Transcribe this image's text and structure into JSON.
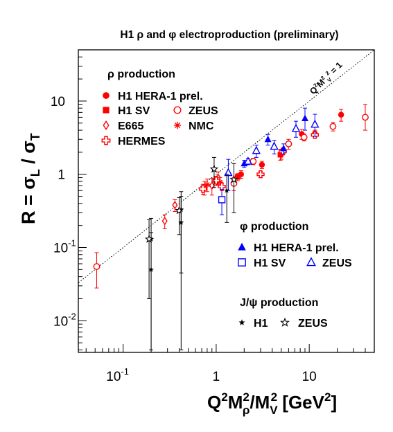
{
  "chart_data": {
    "type": "scatter",
    "title": "H1 ρ and φ electroproduction (preliminary)",
    "ylabel": "R = σL / σT",
    "xlabel": "Q²Mρ²/MV² [GeV²]",
    "x_scale": "log",
    "y_scale": "log",
    "xlim": [
      0.033,
      50
    ],
    "ylim": [
      0.0037,
      50
    ],
    "x_ticks": [
      {
        "value": 0.1,
        "base": "10",
        "exp": "-1"
      },
      {
        "value": 1,
        "base": "1",
        "exp": ""
      },
      {
        "value": 10,
        "base": "10",
        "exp": ""
      }
    ],
    "y_ticks": [
      {
        "value": 0.01,
        "base": "10",
        "exp": "-2"
      },
      {
        "value": 0.1,
        "base": "10",
        "exp": "-1"
      },
      {
        "value": 1,
        "base": "1",
        "exp": ""
      },
      {
        "value": 10,
        "base": "10",
        "exp": ""
      }
    ],
    "reference_line": {
      "label": "Q²Mρ²/MV² = 1",
      "relation": "R = x"
    },
    "legend": {
      "rho_heading": "ρ production",
      "phi_heading": "φ production",
      "jpsi_heading": "J/ψ production"
    },
    "series": [
      {
        "name": "H1 HERA-1 prel.",
        "group": "rho",
        "marker": "filled-circle",
        "color": "#ff0000",
        "points": [
          [
            1.85,
            1.0,
            0.88,
            1.12
          ],
          [
            3.1,
            1.35,
            1.2,
            1.5
          ],
          [
            5.0,
            1.9,
            1.6,
            2.2
          ],
          [
            8.3,
            3.55,
            3.0,
            4.1
          ],
          [
            11.5,
            3.6,
            3.2,
            4.0
          ],
          [
            22.0,
            6.5,
            5.3,
            7.7
          ]
        ]
      },
      {
        "name": "H1 SV",
        "group": "rho",
        "marker": "filled-square",
        "color": "#ff0000",
        "points": [
          [
            1.7,
            0.92,
            0.82,
            1.02
          ],
          [
            4.9,
            1.85,
            1.55,
            2.2
          ]
        ]
      },
      {
        "name": "ZEUS",
        "group": "rho",
        "marker": "open-circle",
        "color": "#ff0000",
        "points": [
          [
            0.052,
            0.055,
            0.028,
            0.085
          ],
          [
            1.55,
            0.75,
            0.6,
            0.9
          ],
          [
            2.5,
            1.5,
            1.35,
            1.65
          ],
          [
            6.0,
            2.6,
            2.2,
            3.0
          ],
          [
            8.8,
            3.2,
            2.85,
            3.55
          ],
          [
            18.0,
            4.5,
            3.9,
            5.1
          ],
          [
            40.0,
            6.0,
            4.0,
            9.0
          ]
        ]
      },
      {
        "name": "E665",
        "group": "rho",
        "marker": "open-diamond",
        "color": "#ff0000",
        "points": [
          [
            0.28,
            0.23,
            0.18,
            0.28
          ],
          [
            0.36,
            0.38,
            0.31,
            0.45
          ],
          [
            0.75,
            0.66,
            0.52,
            0.8
          ],
          [
            0.9,
            0.7,
            0.52,
            0.88
          ],
          [
            1.05,
            0.9,
            0.72,
            1.08
          ]
        ]
      },
      {
        "name": "NMC",
        "group": "rho",
        "marker": "star-asterisk",
        "color": "#ff0000",
        "points": [
          [
            0.8,
            0.72,
            0.58,
            0.86
          ],
          [
            1.1,
            0.78,
            0.66,
            0.9
          ]
        ]
      },
      {
        "name": "HERMES",
        "group": "rho",
        "marker": "open-cross",
        "color": "#ff0000",
        "points": [
          [
            0.72,
            0.63,
            0.53,
            0.73
          ],
          [
            1.0,
            0.82,
            0.7,
            0.94
          ],
          [
            1.15,
            0.68,
            0.6,
            0.76
          ],
          [
            3.0,
            1.0,
            0.9,
            1.1
          ],
          [
            5.2,
            2.05,
            1.85,
            2.25
          ],
          [
            11.5,
            3.45,
            3.1,
            3.8
          ]
        ]
      },
      {
        "name": "H1 HERA-1 prel.",
        "group": "phi",
        "marker": "filled-triangle",
        "color": "#0000ff",
        "points": [
          [
            2.0,
            1.4,
            1.25,
            1.55
          ],
          [
            3.6,
            3.0,
            2.5,
            3.5
          ],
          [
            5.3,
            2.25,
            1.9,
            2.6
          ],
          [
            9.0,
            5.8,
            4.0,
            8.0
          ]
        ]
      },
      {
        "name": "H1 SV",
        "group": "phi",
        "marker": "open-square",
        "color": "#0000ff",
        "points": [
          [
            1.15,
            0.45,
            0.28,
            0.62
          ]
        ]
      },
      {
        "name": "ZEUS",
        "group": "phi",
        "marker": "open-triangle",
        "color": "#0000ff",
        "points": [
          [
            1.35,
            1.05,
            0.6,
            1.6
          ],
          [
            2.2,
            1.5,
            1.35,
            1.65
          ],
          [
            2.7,
            2.1,
            1.7,
            2.5
          ],
          [
            4.2,
            2.4,
            1.9,
            2.9
          ],
          [
            7.2,
            4.2,
            3.2,
            5.3
          ],
          [
            11.5,
            4.8,
            3.3,
            6.6
          ]
        ]
      },
      {
        "name": "H1",
        "group": "jpsi",
        "marker": "filled-star",
        "color": "#000000",
        "points": [
          [
            0.2,
            0.13,
            0.004,
            0.25
          ],
          [
            0.2,
            0.05,
            0.003,
            0.16
          ],
          [
            0.42,
            0.33,
            0.045,
            0.58
          ],
          [
            0.42,
            0.22,
            0.004,
            0.5
          ],
          [
            1.3,
            0.6,
            0.22,
            1.0
          ]
        ]
      },
      {
        "name": "ZEUS",
        "group": "jpsi",
        "marker": "open-star",
        "color": "#000000",
        "points": [
          [
            0.19,
            0.13,
            0.02,
            0.24
          ],
          [
            0.4,
            0.32,
            0.15,
            0.48
          ],
          [
            0.95,
            1.18,
            0.66,
            1.7
          ],
          [
            1.55,
            0.85,
            0.3,
            1.4
          ]
        ]
      }
    ]
  }
}
